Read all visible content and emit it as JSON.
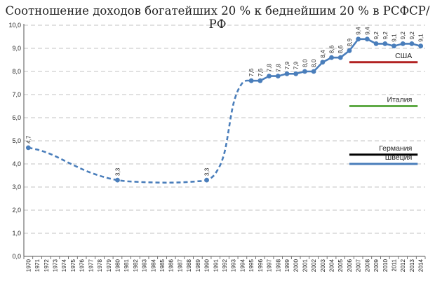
{
  "chart_data": {
    "type": "line",
    "title": "Соотношение доходов богатейших 20 % к беднейшим 20 % в РСФСР/РФ",
    "xlabel": "",
    "ylabel": "",
    "ylim": [
      0,
      10
    ],
    "y_ticks": [
      "0,0",
      "1,0",
      "2,0",
      "3,0",
      "4,0",
      "5,0",
      "6,0",
      "7,0",
      "8,0",
      "9,0",
      "10,0"
    ],
    "grid": true,
    "categories": [
      "1970",
      "1971",
      "1972",
      "1973",
      "1974",
      "1975",
      "1976",
      "1977",
      "1978",
      "1979",
      "1980",
      "1981",
      "1982",
      "1983",
      "1984",
      "1985",
      "1986",
      "1987",
      "1988",
      "1989",
      "1990",
      "1991",
      "1992",
      "1993",
      "1994",
      "1995",
      "1996",
      "1997",
      "1998",
      "1999",
      "2000",
      "2001",
      "2002",
      "2003",
      "2004",
      "2005",
      "2006",
      "2007",
      "2008",
      "2009",
      "2010",
      "2011",
      "2012",
      "2013",
      "2014"
    ],
    "series": [
      {
        "color": "#4a7ebb",
        "estimated_curve": [
          {
            "x": "1970",
            "y": 4.7
          },
          {
            "x": "1971",
            "y": 4.62
          },
          {
            "x": "1972",
            "y": 4.5
          },
          {
            "x": "1973",
            "y": 4.34
          },
          {
            "x": "1974",
            "y": 4.15
          },
          {
            "x": "1975",
            "y": 3.96
          },
          {
            "x": "1976",
            "y": 3.78
          },
          {
            "x": "1977",
            "y": 3.62
          },
          {
            "x": "1978",
            "y": 3.49
          },
          {
            "x": "1979",
            "y": 3.38
          },
          {
            "x": "1980",
            "y": 3.3
          },
          {
            "x": "1981",
            "y": 3.25
          },
          {
            "x": "1982",
            "y": 3.23
          },
          {
            "x": "1983",
            "y": 3.21
          },
          {
            "x": "1984",
            "y": 3.2
          },
          {
            "x": "1985",
            "y": 3.19
          },
          {
            "x": "1986",
            "y": 3.19
          },
          {
            "x": "1987",
            "y": 3.2
          },
          {
            "x": "1988",
            "y": 3.22
          },
          {
            "x": "1989",
            "y": 3.25
          },
          {
            "x": "1990",
            "y": 3.3
          },
          {
            "x": "1991",
            "y": 3.6
          },
          {
            "x": "1992",
            "y": 4.5
          },
          {
            "x": "1993",
            "y": 6.6
          },
          {
            "x": "1994",
            "y": 7.5
          },
          {
            "x": "1995",
            "y": 7.6
          }
        ],
        "points": [
          {
            "x": "1970",
            "y": 4.7,
            "label": "4,7"
          },
          {
            "x": "1980",
            "y": 3.3,
            "label": "3,3"
          },
          {
            "x": "1990",
            "y": 3.3,
            "label": "3,3"
          },
          {
            "x": "1995",
            "y": 7.6,
            "label": "7,6"
          },
          {
            "x": "1996",
            "y": 7.6,
            "label": "7,6"
          },
          {
            "x": "1997",
            "y": 7.8,
            "label": "7,8"
          },
          {
            "x": "1998",
            "y": 7.8,
            "label": "7,8"
          },
          {
            "x": "1999",
            "y": 7.9,
            "label": "7,9"
          },
          {
            "x": "2000",
            "y": 7.9,
            "label": "7,9"
          },
          {
            "x": "2001",
            "y": 8.0,
            "label": "8,0"
          },
          {
            "x": "2002",
            "y": 8.0,
            "label": "8,0"
          },
          {
            "x": "2003",
            "y": 8.4,
            "label": "8,4"
          },
          {
            "x": "2004",
            "y": 8.6,
            "label": "8,6"
          },
          {
            "x": "2005",
            "y": 8.6,
            "label": "8,6"
          },
          {
            "x": "2006",
            "y": 8.9,
            "label": "8,9"
          },
          {
            "x": "2007",
            "y": 9.4,
            "label": "9,4"
          },
          {
            "x": "2008",
            "y": 9.4,
            "label": "9,4"
          },
          {
            "x": "2009",
            "y": 9.2,
            "label": "9,2"
          },
          {
            "x": "2010",
            "y": 9.2,
            "label": "9,2"
          },
          {
            "x": "2011",
            "y": 9.1,
            "label": "9,1"
          },
          {
            "x": "2012",
            "y": 9.2,
            "label": "9,2"
          },
          {
            "x": "2013",
            "y": 9.2,
            "label": "9,2"
          },
          {
            "x": "2014",
            "y": 9.1,
            "label": "9,1"
          }
        ]
      }
    ],
    "references": [
      {
        "name": "США",
        "value": 8.4,
        "color": "#b22222",
        "x_from": "2006",
        "x_to": "2013"
      },
      {
        "name": "Италия",
        "value": 6.5,
        "color": "#5faa46",
        "x_from": "2006",
        "x_to": "2013"
      },
      {
        "name": "Германия",
        "value": 4.4,
        "color": "#000000",
        "x_from": "2006",
        "x_to": "2013"
      },
      {
        "name": "Швеция",
        "value": 4.0,
        "color": "#4a7ebb",
        "x_from": "2006",
        "x_to": "2013"
      }
    ]
  }
}
